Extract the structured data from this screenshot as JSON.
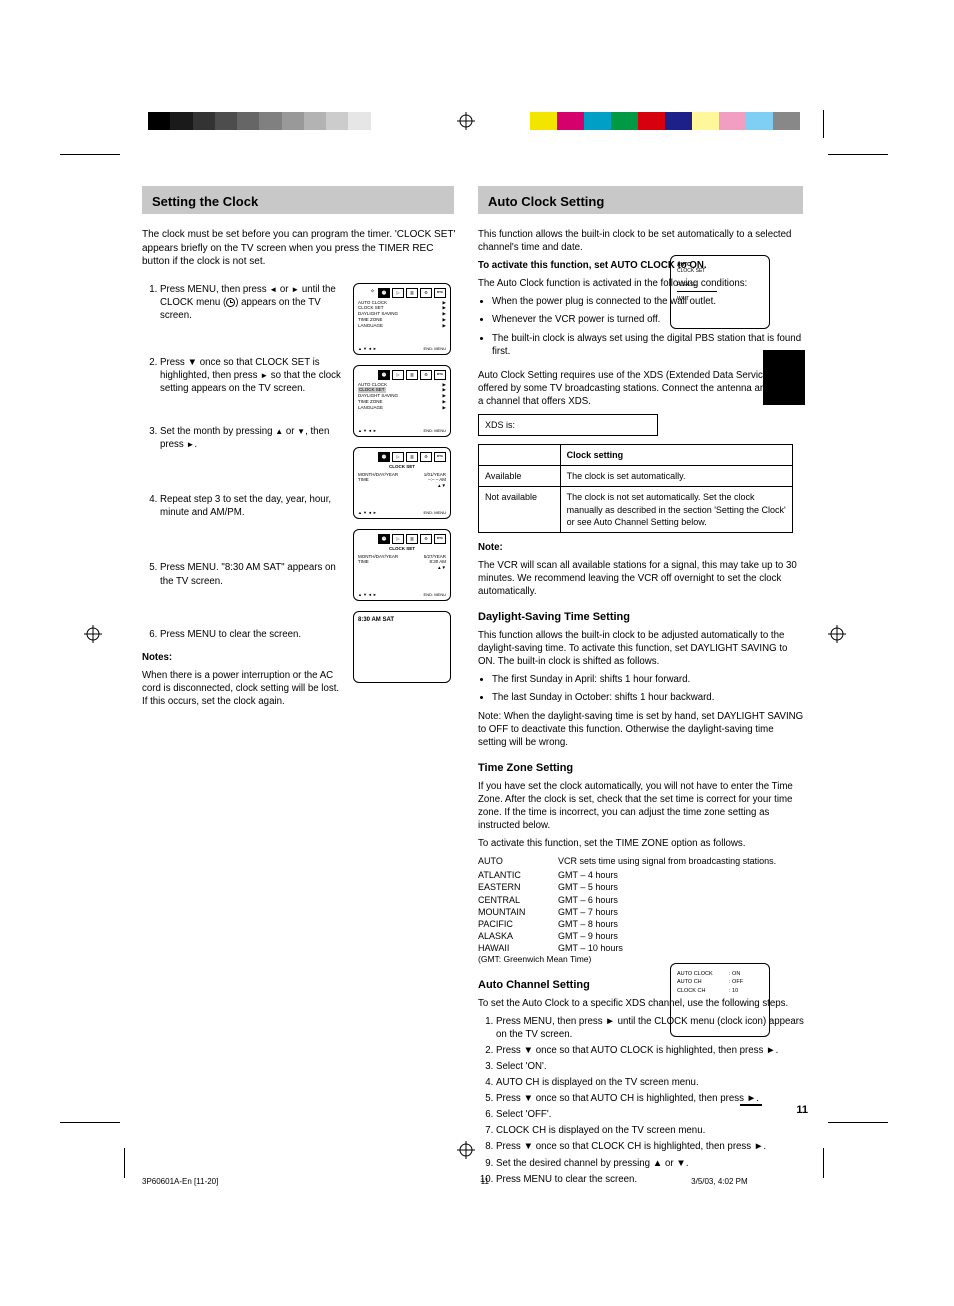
{
  "pageNumber": "11",
  "footerInfo": "3P60601A-En [11-20]",
  "footerMeta": "11\n3/5/03, 4:02 PM",
  "sectionLeft": {
    "title": "Setting the Clock",
    "intro": "The clock must be set before you can program the timer. 'CLOCK SET' appears briefly on the TV screen when you press the TIMER REC button if the clock is not set.",
    "steps": [
      "Press MENU, then press ◄ or ► until the CLOCK menu (clock icon) appears on the TV screen.",
      "Press ▼ once so that CLOCK SET is highlighted, then press ► so that the clock setting appears on the TV screen.",
      "Set the month by pressing ▲ or ▼, then press ►.",
      "Repeat step 3 to set the day, year, hour, minute and AM/PM.",
      "Press MENU. '8:30 AM SAT' appears on the TV screen.",
      "Press MENU to clear the screen."
    ],
    "noteHead": "Notes:",
    "notes": "When there is a power interruption or the AC cord is disconnected, clock setting will be lost. If this occurs, set the clock again.",
    "screens": {
      "s1_tabs": [
        "🕐",
        "▷",
        "▥",
        "⚙",
        "DTA"
      ],
      "s1_rows": [
        [
          "AUTO CLOCK",
          "▶"
        ],
        [
          "CLOCK SET",
          "▶"
        ],
        [
          "DAYLIGHT SAVING",
          "▶"
        ],
        [
          "TIME ZONE",
          "▶"
        ],
        [
          "",
          ""
        ],
        [
          "LANGUAGE",
          "▶"
        ]
      ],
      "s1_foot_l": "▲▼◄►",
      "s1_foot_r": "END: MENU",
      "s2_highlight": "CLOCK SET",
      "s3_title": "CLOCK SET",
      "s3_rows": [
        [
          "MONTH/DAY/YEAR",
          "1/01/YEAR"
        ],
        [
          "TIME",
          "–:– – AM"
        ],
        [
          "",
          "▲▼"
        ]
      ],
      "s3_foot_l": "▲▼◄►",
      "s3_foot_r": "END: MENU",
      "s4_rows": [
        [
          "MONTH/DAY/YEAR",
          "5/27/YEAR"
        ],
        [
          "TIME",
          "8:30 AM"
        ],
        [
          "",
          "▲▼"
        ]
      ],
      "s5_text": "8:30 AM SAT"
    }
  },
  "sectionRight": {
    "title": "Auto Clock Setting",
    "intro1": "This function allows the built-in clock to be set automatically to a selected channel's time and date.",
    "intro2Strong": "To activate this function, set AUTO CLOCK to ON.",
    "intro3": "The Auto Clock function is activated in the following conditions:",
    "bullets": [
      "When the power plug is connected to the wall outlet.",
      "Whenever the VCR power is turned off.",
      "The built-in clock is always set using the digital PBS station that is found first."
    ],
    "bigScreen": {
      "line1": "AUTO",
      "line2": "CLOCK SET",
      "line3": "PLEASE",
      "line4": "WAIT"
    },
    "xdsIntro": "Auto Clock Setting requires use of the XDS (Extended Data Service) offered by some TV broadcasting stations. Connect the antenna and select a channel that offers XDS.",
    "xdsBoxLabel": "XDS is:",
    "xdsTable": {
      "headers": [
        "",
        "Clock setting"
      ],
      "rows": [
        [
          "Available",
          "The clock is set automatically."
        ],
        [
          "Not available",
          "The clock is not set automatically. Set the clock manually as described in the section 'Setting the Clock' or see Auto Channel Setting below."
        ]
      ]
    },
    "noteHead": "Note:",
    "noteText": "The VCR will scan all available stations for a signal, this may take up to 30 minutes. We recommend leaving the VCR off overnight to set the clock automatically.",
    "sub1": {
      "title": "Daylight-Saving Time Setting",
      "body": "This function allows the built-in clock to be adjusted automatically to the daylight-saving time. To activate this function, set DAYLIGHT SAVING to ON. The built-in clock is shifted as follows.",
      "bullets": [
        "The first Sunday in April: shifts 1 hour forward.",
        "The last Sunday in October: shifts 1 hour backward."
      ],
      "note": "Note: When the daylight-saving time is set by hand, set DAYLIGHT SAVING to OFF to deactivate this function. Otherwise the daylight-saving time setting will be wrong."
    },
    "sub2": {
      "title": "Time Zone Setting",
      "body": "If you have set the clock automatically, you will not have to enter the Time Zone. After the clock is set, check that the set time is correct for your time zone. If the time is incorrect, you can adjust the time zone setting as instructed below.",
      "body2": "To activate this function, set the TIME ZONE option as follows.",
      "auto": [
        "AUTO",
        "VCR sets time using signal from broadcasting stations."
      ],
      "zones": [
        [
          "ATLANTIC",
          "GMT – 4 hours"
        ],
        [
          "EASTERN",
          "GMT – 5 hours"
        ],
        [
          "CENTRAL",
          "GMT – 6 hours"
        ],
        [
          "MOUNTAIN",
          "GMT – 7 hours"
        ],
        [
          "PACIFIC",
          "GMT – 8 hours"
        ],
        [
          "ALASKA",
          "GMT – 9 hours"
        ],
        [
          "HAWAII",
          "GMT – 10 hours"
        ]
      ],
      "gmtNote": "(GMT: Greenwich Mean Time)"
    },
    "sub3": {
      "title": "Auto Channel Setting",
      "body1": "To set the Auto Clock to a specific XDS channel, use the following steps.",
      "steps": [
        "Press MENU, then press ► until the CLOCK menu (clock icon) appears on the TV screen.",
        "Press ▼ once so that AUTO CLOCK is highlighted, then press ►.",
        "Select 'ON'.",
        "AUTO CH is displayed on the TV screen menu.",
        "Press ▼ once so that AUTO CH is highlighted, then press ►.",
        "Select 'OFF'.",
        "CLOCK CH is displayed on the TV screen menu.",
        "Press ▼ once so that CLOCK CH is highlighted, then press ►.",
        "Set the desired channel by pressing ▲ or ▼.",
        "Press MENU to clear the screen."
      ],
      "screen": {
        "rows": [
          [
            "AUTO CLOCK",
            ": ON"
          ],
          [
            "AUTO CH",
            ": OFF"
          ],
          [
            "CLOCK CH",
            ": 10"
          ]
        ]
      }
    }
  },
  "colorBar": [
    "#f2e600",
    "#d6006c",
    "#00a0c6",
    "#009944",
    "#d7000f",
    "#1d2088",
    "#fff799",
    "#f19ec2",
    "#7fcef4",
    "#888888"
  ],
  "grayBar": [
    "#000000",
    "#1a1a1a",
    "#333333",
    "#4d4d4d",
    "#666666",
    "#808080",
    "#999999",
    "#b3b3b3",
    "#cccccc",
    "#e6e6e6",
    "#ffffff"
  ]
}
